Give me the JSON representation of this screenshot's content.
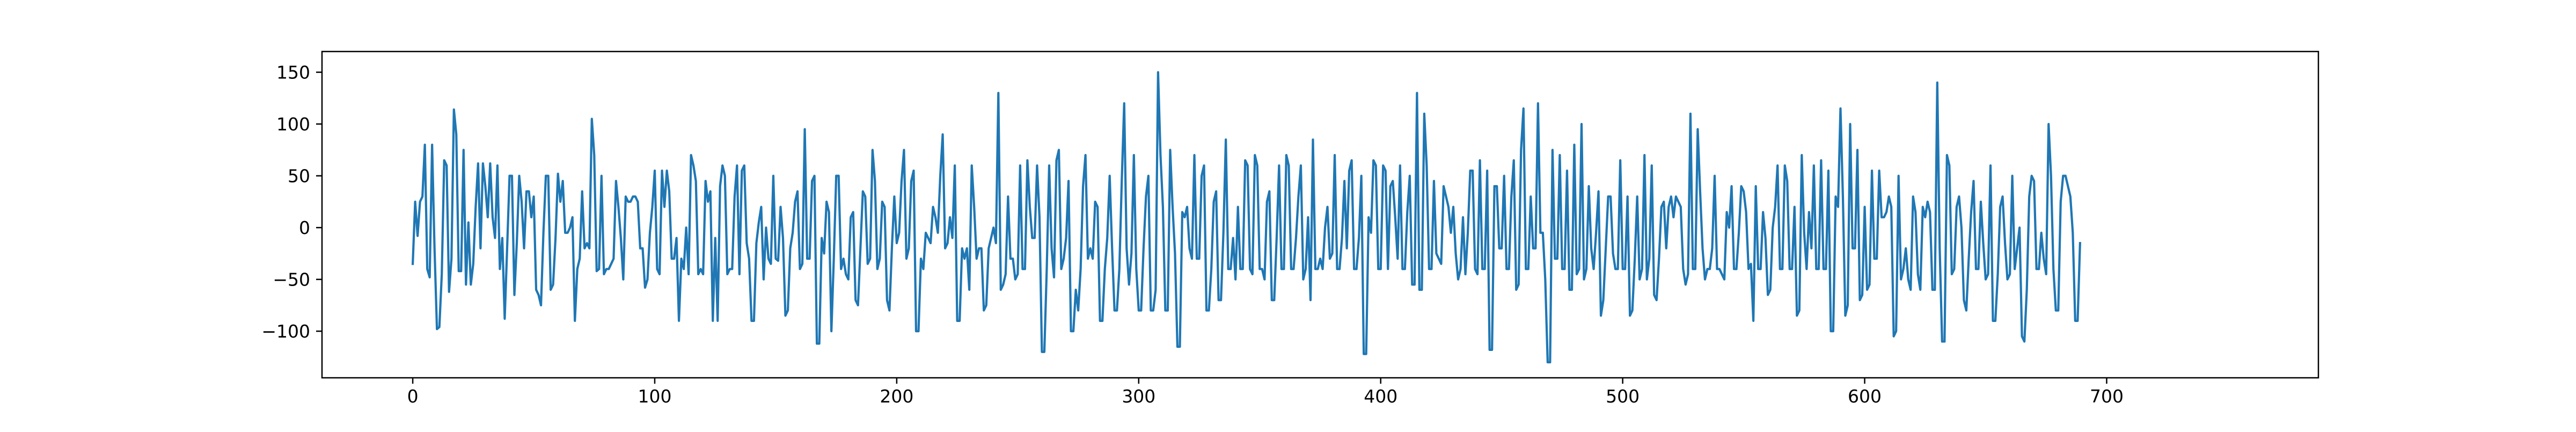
{
  "chart_data": {
    "type": "line",
    "title": "",
    "xlabel": "",
    "ylabel": "",
    "xlim": [
      -37.5,
      787.5
    ],
    "ylim": [
      -145,
      170
    ],
    "xticks": [
      0,
      100,
      200,
      300,
      400,
      500,
      600,
      700
    ],
    "xtick_labels": [
      "0",
      "100",
      "200",
      "300",
      "400",
      "500",
      "600",
      "700"
    ],
    "yticks": [
      -100,
      -50,
      0,
      50,
      100,
      150
    ],
    "ytick_labels": [
      "−100",
      "−50",
      "0",
      "50",
      "100",
      "150"
    ],
    "grid": false,
    "legend": "none",
    "series": [
      {
        "color": "#1f77b4",
        "x_start": 0,
        "x_step": 1,
        "values": [
          -35,
          25,
          -8,
          25,
          30,
          80,
          -40,
          -48,
          80,
          -20,
          -98,
          -96,
          -45,
          65,
          60,
          -62,
          -30,
          114,
          90,
          -42,
          -42,
          75,
          -55,
          5,
          -55,
          -35,
          20,
          62,
          -20,
          62,
          40,
          10,
          62,
          10,
          -10,
          60,
          -40,
          -10,
          -88,
          -20,
          50,
          50,
          -65,
          -15,
          50,
          25,
          -20,
          35,
          35,
          10,
          30,
          -60,
          -65,
          -75,
          -5,
          50,
          50,
          -60,
          -55,
          -10,
          52,
          25,
          45,
          -5,
          -5,
          0,
          10,
          -90,
          -40,
          -30,
          35,
          -20,
          -15,
          -20,
          105,
          70,
          -42,
          -40,
          50,
          -45,
          -40,
          -40,
          -35,
          -30,
          45,
          20,
          -10,
          -50,
          30,
          25,
          25,
          30,
          30,
          25,
          -20,
          -20,
          -58,
          -50,
          -5,
          20,
          55,
          -40,
          -45,
          55,
          20,
          55,
          35,
          -30,
          -30,
          -10,
          -90,
          -30,
          -40,
          0,
          -45,
          70,
          60,
          45,
          -45,
          -40,
          -45,
          45,
          25,
          35,
          -90,
          -10,
          -90,
          40,
          60,
          50,
          -45,
          -40,
          -40,
          30,
          60,
          -45,
          55,
          60,
          -15,
          -30,
          -90,
          -90,
          -15,
          5,
          20,
          -50,
          0,
          -30,
          -35,
          50,
          -30,
          -32,
          20,
          -10,
          -85,
          -80,
          -20,
          -5,
          25,
          35,
          -40,
          -35,
          95,
          -30,
          -30,
          45,
          50,
          -112,
          -112,
          -10,
          -25,
          25,
          15,
          -100,
          -30,
          50,
          50,
          -40,
          -30,
          -45,
          -50,
          10,
          15,
          -70,
          -75,
          -20,
          35,
          30,
          -35,
          -30,
          75,
          45,
          -40,
          -30,
          25,
          20,
          -70,
          -80,
          -20,
          30,
          -15,
          -5,
          45,
          75,
          -30,
          -20,
          45,
          55,
          -100,
          -100,
          -30,
          -40,
          -5,
          -10,
          -15,
          20,
          10,
          -5,
          50,
          90,
          -20,
          -15,
          10,
          -10,
          60,
          -90,
          -90,
          -20,
          -30,
          -20,
          -60,
          60,
          20,
          -30,
          -20,
          -20,
          -80,
          -75,
          -20,
          -10,
          0,
          -15,
          130,
          -60,
          -55,
          -45,
          30,
          -30,
          -30,
          -50,
          -45,
          60,
          -40,
          -40,
          65,
          20,
          -10,
          -10,
          60,
          10,
          -120,
          -120,
          -40,
          60,
          -20,
          -48,
          65,
          75,
          -40,
          -30,
          -10,
          45,
          -100,
          -100,
          -60,
          -80,
          -40,
          40,
          70,
          -30,
          -20,
          -30,
          25,
          20,
          -90,
          -90,
          -40,
          -10,
          50,
          -20,
          -80,
          -80,
          -40,
          45,
          120,
          -20,
          -55,
          -25,
          70,
          -40,
          -80,
          -80,
          -20,
          30,
          50,
          -80,
          -80,
          -60,
          150,
          70,
          20,
          -80,
          -80,
          75,
          20,
          -25,
          -115,
          -115,
          15,
          10,
          20,
          -20,
          -30,
          70,
          -30,
          -30,
          50,
          60,
          -80,
          -80,
          -40,
          25,
          35,
          -70,
          -70,
          -5,
          85,
          -40,
          -40,
          -10,
          -50,
          20,
          -40,
          -40,
          65,
          60,
          -40,
          -45,
          70,
          60,
          -40,
          -40,
          -50,
          25,
          35,
          -70,
          -70,
          -10,
          60,
          -40,
          -40,
          70,
          60,
          -40,
          -40,
          -10,
          30,
          60,
          -50,
          -40,
          10,
          -70,
          85,
          -40,
          -40,
          -30,
          -40,
          0,
          20,
          -30,
          -25,
          70,
          -40,
          -40,
          -10,
          45,
          -20,
          55,
          65,
          -40,
          -40,
          -10,
          50,
          -122,
          -122,
          10,
          -5,
          65,
          60,
          -40,
          -40,
          60,
          55,
          -40,
          40,
          45,
          10,
          -30,
          60,
          -40,
          -40,
          15,
          50,
          -55,
          -55,
          130,
          -60,
          -60,
          110,
          60,
          -40,
          -40,
          45,
          -25,
          -30,
          -35,
          40,
          30,
          20,
          -5,
          20,
          -25,
          -50,
          -40,
          10,
          -45,
          -5,
          55,
          55,
          -40,
          -45,
          65,
          -40,
          -40,
          55,
          -118,
          -118,
          40,
          40,
          -20,
          -20,
          50,
          -40,
          -40,
          30,
          65,
          -60,
          -55,
          75,
          115,
          -40,
          -40,
          30,
          -20,
          -20,
          120,
          -5,
          -5,
          -50,
          -130,
          -130,
          75,
          -30,
          -30,
          70,
          -40,
          -40,
          55,
          -60,
          -60,
          80,
          -45,
          -40,
          100,
          -50,
          -40,
          40,
          -20,
          -40,
          -5,
          35,
          -85,
          -70,
          -20,
          30,
          30,
          -25,
          -40,
          -40,
          65,
          -40,
          -40,
          30,
          -85,
          -80,
          -30,
          30,
          -50,
          -40,
          70,
          -50,
          -30,
          60,
          -65,
          -70,
          -30,
          20,
          25,
          -20,
          20,
          30,
          10,
          30,
          25,
          20,
          -40,
          -55,
          -45,
          110,
          -40,
          -40,
          95,
          35,
          -20,
          -50,
          -40,
          -40,
          -20,
          50,
          -40,
          -40,
          -45,
          -50,
          15,
          0,
          40,
          -40,
          -40,
          -5,
          40,
          35,
          15,
          -40,
          -35,
          -90,
          40,
          -40,
          -40,
          15,
          -10,
          -65,
          -60,
          0,
          20,
          60,
          -40,
          -40,
          60,
          45,
          -40,
          -40,
          20,
          -85,
          -80,
          70,
          -5,
          -40,
          15,
          -20,
          60,
          -40,
          -40,
          65,
          -40,
          -40,
          55,
          -100,
          -100,
          30,
          20,
          115,
          30,
          -85,
          -75,
          100,
          -20,
          -20,
          75,
          -70,
          -65,
          20,
          -60,
          -55,
          55,
          -30,
          -30,
          55,
          10,
          10,
          15,
          30,
          20,
          -105,
          -100,
          50,
          -50,
          -40,
          -20,
          -50,
          -60,
          30,
          15,
          -45,
          -60,
          20,
          10,
          25,
          15,
          -60,
          -60,
          140,
          -20,
          -110,
          -110,
          70,
          60,
          -45,
          -40,
          20,
          30,
          0,
          -70,
          -80,
          -30,
          15,
          45,
          -40,
          -40,
          25,
          -15,
          -50,
          -45,
          60,
          -90,
          -90,
          -45,
          20,
          30,
          -15,
          -50,
          -45,
          50,
          -40,
          -20,
          0,
          -105,
          -110,
          -60,
          30,
          50,
          45,
          -40,
          -40,
          -5,
          -30,
          -45,
          100,
          50,
          -40,
          -80,
          -80,
          25,
          50,
          50,
          40,
          30,
          -5,
          -90,
          -90,
          -15
        ]
      }
    ]
  }
}
